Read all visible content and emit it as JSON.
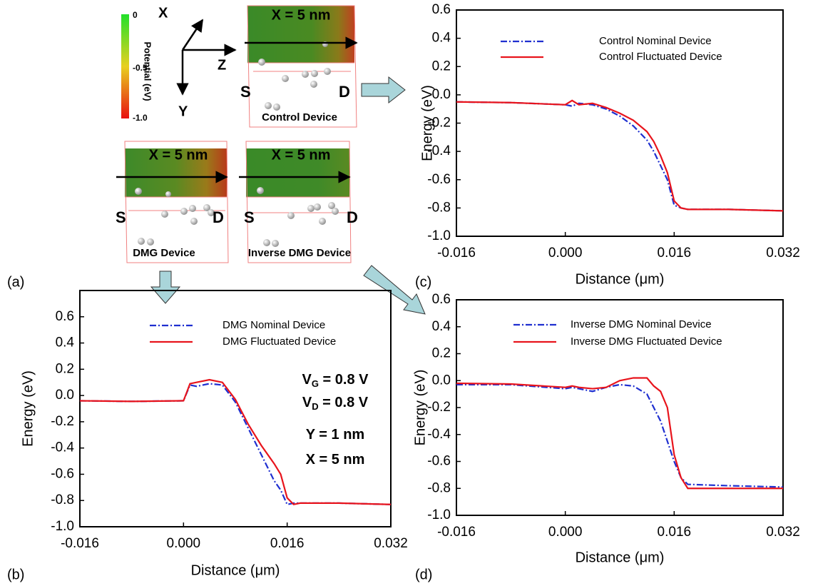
{
  "diagram": {
    "colorbar": {
      "title": "Potential (eV)",
      "ticks": [
        "0",
        "-0.5",
        "-1.0"
      ]
    },
    "axes": {
      "x": "X",
      "y": "Y",
      "z": "Z"
    },
    "devices": [
      {
        "cut": "X = 5 nm",
        "source": "S",
        "drain": "D",
        "name": "Control Device"
      },
      {
        "cut": "X = 5 nm",
        "source": "S",
        "drain": "D",
        "name": "DMG Device"
      },
      {
        "cut": "X = 5 nm",
        "source": "S",
        "drain": "D",
        "name": "Inverse DMG Device"
      }
    ]
  },
  "panel_labels": [
    "(a)",
    "(b)",
    "(c)",
    "(d)"
  ],
  "chart_data": [
    {
      "type": "line",
      "xlabel": "Distance (μm)",
      "ylabel": "Energy (eV)",
      "x": [
        -0.016,
        -0.008,
        0,
        0.001,
        0.002,
        0.004,
        0.006,
        0.008,
        0.01,
        0.012,
        0.013,
        0.014,
        0.015,
        0.016,
        0.017,
        0.018,
        0.024,
        0.032
      ],
      "series": [
        {
          "name": "Control Nominal Device",
          "color": "#1f2fd0",
          "style": "dashdot",
          "values": [
            -0.05,
            -0.055,
            -0.07,
            -0.08,
            -0.06,
            -0.07,
            -0.1,
            -0.15,
            -0.22,
            -0.32,
            -0.4,
            -0.5,
            -0.6,
            -0.78,
            -0.8,
            -0.81,
            -0.81,
            -0.82
          ]
        },
        {
          "name": "Control Fluctuated Device",
          "color": "#e8141c",
          "style": "solid",
          "values": [
            -0.05,
            -0.055,
            -0.07,
            -0.04,
            -0.07,
            -0.06,
            -0.09,
            -0.13,
            -0.18,
            -0.26,
            -0.33,
            -0.43,
            -0.55,
            -0.75,
            -0.8,
            -0.81,
            -0.81,
            -0.82
          ]
        }
      ],
      "xlim": [
        -0.016,
        0.032
      ],
      "xticks": [
        -0.016,
        {
          "value": 0,
          "label": "0.000"
        },
        0.016,
        0.032
      ],
      "ylim": [
        -1.0,
        0.6
      ],
      "yticks": [
        0.6,
        0.4,
        0.2,
        {
          "value": 0,
          "label": "0.0"
        },
        -0.2,
        -0.4,
        -0.6,
        -0.8,
        {
          "value": -1.0,
          "label": "-1.0"
        }
      ]
    },
    {
      "type": "line",
      "xlabel": "Distance (μm)",
      "ylabel": "Energy (eV)",
      "annotations": [
        {
          "main": "V",
          "sub": "G",
          "rest": " = 0.8 V"
        },
        {
          "main": "V",
          "sub": "D",
          "rest": " = 0.8 V"
        },
        {
          "main": "Y = 1 nm"
        },
        {
          "main": "X = 5 nm"
        }
      ],
      "x": [
        -0.016,
        -0.008,
        0,
        0.001,
        0.002,
        0.004,
        0.006,
        0.008,
        0.01,
        0.012,
        0.013,
        0.014,
        0.015,
        0.016,
        0.017,
        0.018,
        0.024,
        0.032
      ],
      "series": [
        {
          "name": "DMG Nominal Device",
          "color": "#1f2fd0",
          "style": "dashdot",
          "values": [
            -0.04,
            -0.045,
            -0.04,
            0.08,
            0.07,
            0.09,
            0.08,
            -0.05,
            -0.25,
            -0.45,
            -0.55,
            -0.65,
            -0.72,
            -0.83,
            -0.82,
            -0.82,
            -0.82,
            -0.83
          ]
        },
        {
          "name": "DMG Fluctuated Device",
          "color": "#e8141c",
          "style": "solid",
          "values": [
            -0.04,
            -0.045,
            -0.04,
            0.09,
            0.1,
            0.12,
            0.1,
            -0.03,
            -0.22,
            -0.38,
            -0.45,
            -0.52,
            -0.6,
            -0.78,
            -0.83,
            -0.82,
            -0.82,
            -0.83
          ]
        }
      ],
      "xlim": [
        -0.016,
        0.032
      ],
      "xticks": [
        -0.016,
        {
          "value": 0,
          "label": "0.000"
        },
        0.016,
        0.032
      ],
      "ylim": [
        -1.0,
        0.8
      ],
      "yticks": [
        0.6,
        0.4,
        0.2,
        {
          "value": 0,
          "label": "0.0"
        },
        -0.2,
        -0.4,
        -0.6,
        -0.8,
        {
          "value": -1.0,
          "label": "-1.0"
        }
      ]
    },
    {
      "type": "line",
      "xlabel": "Distance (μm)",
      "ylabel": "Energy (eV)",
      "x": [
        -0.016,
        -0.008,
        0,
        0.001,
        0.002,
        0.004,
        0.006,
        0.008,
        0.01,
        0.012,
        0.013,
        0.014,
        0.015,
        0.016,
        0.017,
        0.018,
        0.024,
        0.032
      ],
      "series": [
        {
          "name": "Inverse DMG Nominal Device",
          "color": "#1f2fd0",
          "style": "dashdot",
          "values": [
            -0.03,
            -0.03,
            -0.06,
            -0.05,
            -0.06,
            -0.08,
            -0.05,
            -0.03,
            -0.04,
            -0.1,
            -0.2,
            -0.3,
            -0.45,
            -0.6,
            -0.72,
            -0.77,
            -0.78,
            -0.79
          ]
        },
        {
          "name": "Inverse DMG Fluctuated Device",
          "color": "#e8141c",
          "style": "solid",
          "values": [
            -0.02,
            -0.025,
            -0.05,
            -0.04,
            -0.05,
            -0.06,
            -0.05,
            0.0,
            0.02,
            0.02,
            -0.04,
            -0.08,
            -0.2,
            -0.55,
            -0.72,
            -0.8,
            -0.8,
            -0.8
          ]
        }
      ],
      "xlim": [
        -0.016,
        0.032
      ],
      "xticks": [
        -0.016,
        {
          "value": 0,
          "label": "0.000"
        },
        0.016,
        0.032
      ],
      "ylim": [
        -1.0,
        0.6
      ],
      "yticks": [
        0.6,
        0.4,
        0.2,
        {
          "value": 0,
          "label": "0.0"
        },
        -0.2,
        -0.4,
        -0.6,
        -0.8,
        {
          "value": -1.0,
          "label": "-1.0"
        }
      ]
    }
  ]
}
